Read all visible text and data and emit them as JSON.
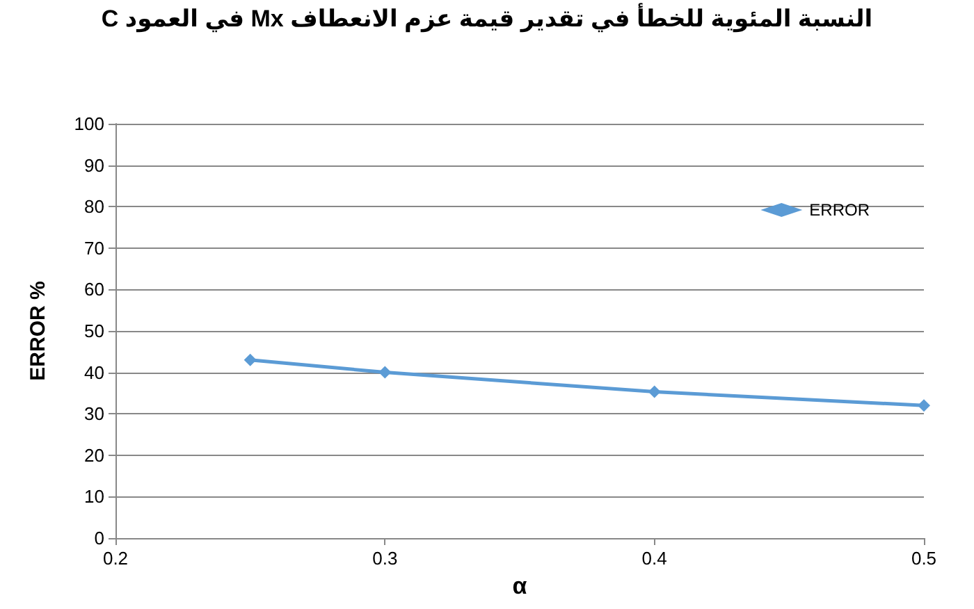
{
  "chart_data": {
    "type": "line",
    "title": "النسبة المئوية للخطأ في تقدير قيمة عزم الانعطاف Mx في العمود C",
    "xlabel": "α",
    "ylabel": "ERROR %",
    "x": [
      0.25,
      0.3,
      0.4,
      0.5
    ],
    "series": [
      {
        "name": "ERROR",
        "color": "#5b9bd5",
        "values": [
          43,
          40,
          35.3,
          32
        ]
      }
    ],
    "xlim": [
      0.2,
      0.5
    ],
    "xticks": [
      0.2,
      0.3,
      0.4,
      0.5
    ],
    "ylim": [
      0,
      100
    ],
    "yticks": [
      0,
      10,
      20,
      30,
      40,
      50,
      60,
      70,
      80,
      90,
      100
    ],
    "grid": "y",
    "legend": "top right",
    "marker": "diamond",
    "line_style": "solid"
  }
}
